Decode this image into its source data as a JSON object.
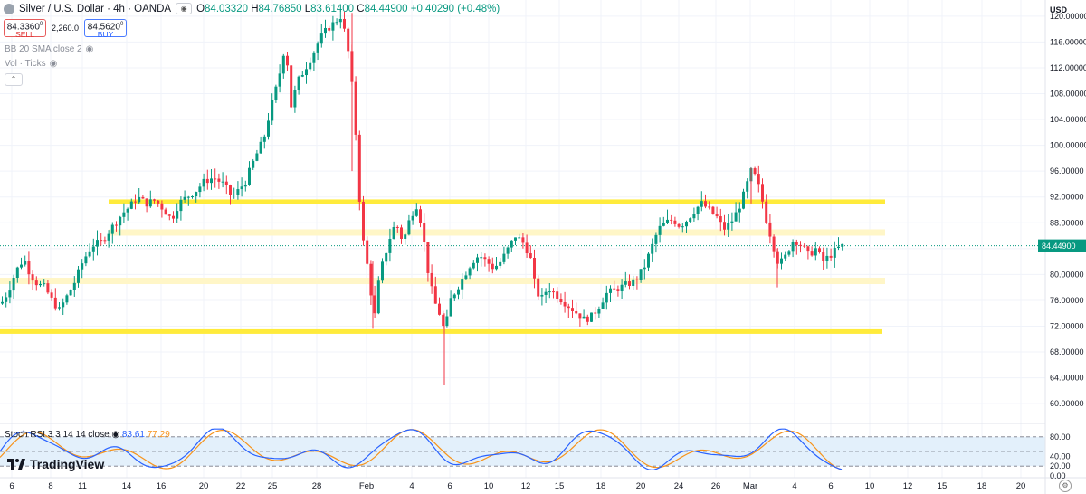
{
  "header": {
    "title": "Silver / U.S. Dollar · 4h · OANDA",
    "ohlc": {
      "o_label": "O",
      "o": "84.03320",
      "h_label": "H",
      "h": "84.76850",
      "l_label": "L",
      "l": "83.61400",
      "c_label": "C",
      "c": "84.44900",
      "change": "+0.40290 (+0.48%)"
    }
  },
  "trade": {
    "sell_price": "84.3360",
    "sell_price_sup": "0",
    "sell_label": "SELL",
    "spread": "2,260.0",
    "buy_price": "84.5620",
    "buy_price_sup": "0",
    "buy_label": "BUY"
  },
  "indicators": {
    "bb": "BB 20 SMA close 2",
    "vol": "Vol · Ticks"
  },
  "rsi": {
    "name": "Stoch RSI 3 3 14 14 close",
    "k": "83.61",
    "d": "77.29"
  },
  "logo": "TradingView",
  "currency": "USD",
  "colors": {
    "up": "#089981",
    "down": "#f23645",
    "yellow": "#ffeb3b",
    "pale_yellow": "#fff6c7",
    "rsi_k": "#2962ff",
    "rsi_d": "#f7931a",
    "rsi_band": "#e3f0fb"
  },
  "chart_data": {
    "type": "candlestick",
    "title": "Silver / U.S. Dollar · 4h · OANDA",
    "y_axis_ticks": [
      "120.00000",
      "116.00000",
      "112.00000",
      "108.00000",
      "104.00000",
      "100.00000",
      "96.00000",
      "92.00000",
      "88.00000",
      "84.00000",
      "80.00000",
      "76.00000",
      "72.00000",
      "68.00000",
      "64.00000",
      "60.00000"
    ],
    "ylim": [
      57.5,
      122.5
    ],
    "x_axis_ticks": [
      "6",
      "8",
      "11",
      "14",
      "16",
      "20",
      "22",
      "25",
      "28",
      "Feb",
      "4",
      "6",
      "10",
      "12",
      "15",
      "18",
      "20",
      "24",
      "26",
      "Mar",
      "4",
      "6",
      "10",
      "12",
      "15",
      "18",
      "20"
    ],
    "grid": true,
    "horizontal_levels": [
      {
        "price": 91.2,
        "style": "bold-yellow"
      },
      {
        "price": 86.5,
        "style": "pale-yellow"
      },
      {
        "price": 79.0,
        "style": "pale-yellow"
      },
      {
        "price": 71.1,
        "style": "bold-yellow"
      }
    ],
    "last_price": 84.449,
    "price_path": [
      [
        0,
        75.5
      ],
      [
        8,
        77.5
      ],
      [
        16,
        80.5
      ],
      [
        25,
        82.5
      ],
      [
        32,
        80
      ],
      [
        40,
        78.5
      ],
      [
        48,
        78
      ],
      [
        56,
        76
      ],
      [
        64,
        74.5
      ],
      [
        72,
        76.5
      ],
      [
        80,
        78.5
      ],
      [
        90,
        82
      ],
      [
        100,
        84.5
      ],
      [
        110,
        85
      ],
      [
        118,
        86.5
      ],
      [
        126,
        88
      ],
      [
        134,
        89.5
      ],
      [
        142,
        90.5
      ],
      [
        150,
        92
      ],
      [
        160,
        91
      ],
      [
        170,
        91.5
      ],
      [
        180,
        90
      ],
      [
        188,
        88.5
      ],
      [
        196,
        91
      ],
      [
        205,
        92
      ],
      [
        215,
        93
      ],
      [
        225,
        94.5
      ],
      [
        235,
        95
      ],
      [
        245,
        94
      ],
      [
        255,
        92
      ],
      [
        262,
        93
      ],
      [
        270,
        94.5
      ],
      [
        280,
        98
      ],
      [
        290,
        101
      ],
      [
        298,
        106
      ],
      [
        306,
        110
      ],
      [
        314,
        116
      ],
      [
        320,
        106
      ],
      [
        328,
        110
      ],
      [
        336,
        112
      ],
      [
        344,
        114
      ],
      [
        352,
        116.5
      ],
      [
        360,
        118
      ],
      [
        368,
        119
      ],
      [
        375,
        120
      ],
      [
        382,
        116
      ],
      [
        390,
        106
      ],
      [
        395,
        93
      ],
      [
        400,
        85
      ],
      [
        406,
        80
      ],
      [
        412,
        73
      ],
      [
        418,
        80
      ],
      [
        424,
        83
      ],
      [
        430,
        86
      ],
      [
        436,
        88
      ],
      [
        444,
        85
      ],
      [
        452,
        89
      ],
      [
        460,
        91
      ],
      [
        466,
        86
      ],
      [
        472,
        80
      ],
      [
        478,
        76
      ],
      [
        484,
        74
      ],
      [
        490,
        71
      ],
      [
        496,
        76
      ],
      [
        504,
        78
      ],
      [
        512,
        80
      ],
      [
        520,
        82
      ],
      [
        528,
        83
      ],
      [
        536,
        82
      ],
      [
        544,
        81
      ],
      [
        552,
        82
      ],
      [
        560,
        84
      ],
      [
        568,
        86
      ],
      [
        576,
        85
      ],
      [
        584,
        83
      ],
      [
        590,
        78
      ],
      [
        596,
        76
      ],
      [
        604,
        78
      ],
      [
        612,
        77
      ],
      [
        620,
        76
      ],
      [
        628,
        75
      ],
      [
        636,
        74
      ],
      [
        644,
        73
      ],
      [
        652,
        73.5
      ],
      [
        660,
        75
      ],
      [
        668,
        77
      ],
      [
        676,
        77.5
      ],
      [
        684,
        78
      ],
      [
        692,
        78.5
      ],
      [
        700,
        79
      ],
      [
        710,
        81
      ],
      [
        718,
        84
      ],
      [
        726,
        87
      ],
      [
        734,
        88
      ],
      [
        742,
        88.5
      ],
      [
        750,
        87.5
      ],
      [
        758,
        88.5
      ],
      [
        766,
        90
      ],
      [
        774,
        91
      ],
      [
        782,
        90
      ],
      [
        790,
        89
      ],
      [
        798,
        87
      ],
      [
        806,
        88
      ],
      [
        814,
        90
      ],
      [
        822,
        93
      ],
      [
        828,
        96
      ],
      [
        834,
        95
      ],
      [
        840,
        92
      ],
      [
        846,
        88
      ],
      [
        852,
        85
      ],
      [
        858,
        82
      ],
      [
        864,
        82
      ],
      [
        870,
        84
      ],
      [
        876,
        85.5
      ],
      [
        884,
        84.5
      ],
      [
        892,
        83
      ],
      [
        900,
        84
      ],
      [
        908,
        82
      ],
      [
        916,
        83
      ],
      [
        924,
        84
      ],
      [
        930,
        84.45
      ]
    ],
    "stoch_rsi": {
      "ticks": [
        "80.00",
        "40.00",
        "20.00",
        "0.00"
      ],
      "ylim": [
        0,
        100
      ],
      "band": [
        20,
        80
      ],
      "k_last": 83.61,
      "d_last": 77.29
    }
  }
}
